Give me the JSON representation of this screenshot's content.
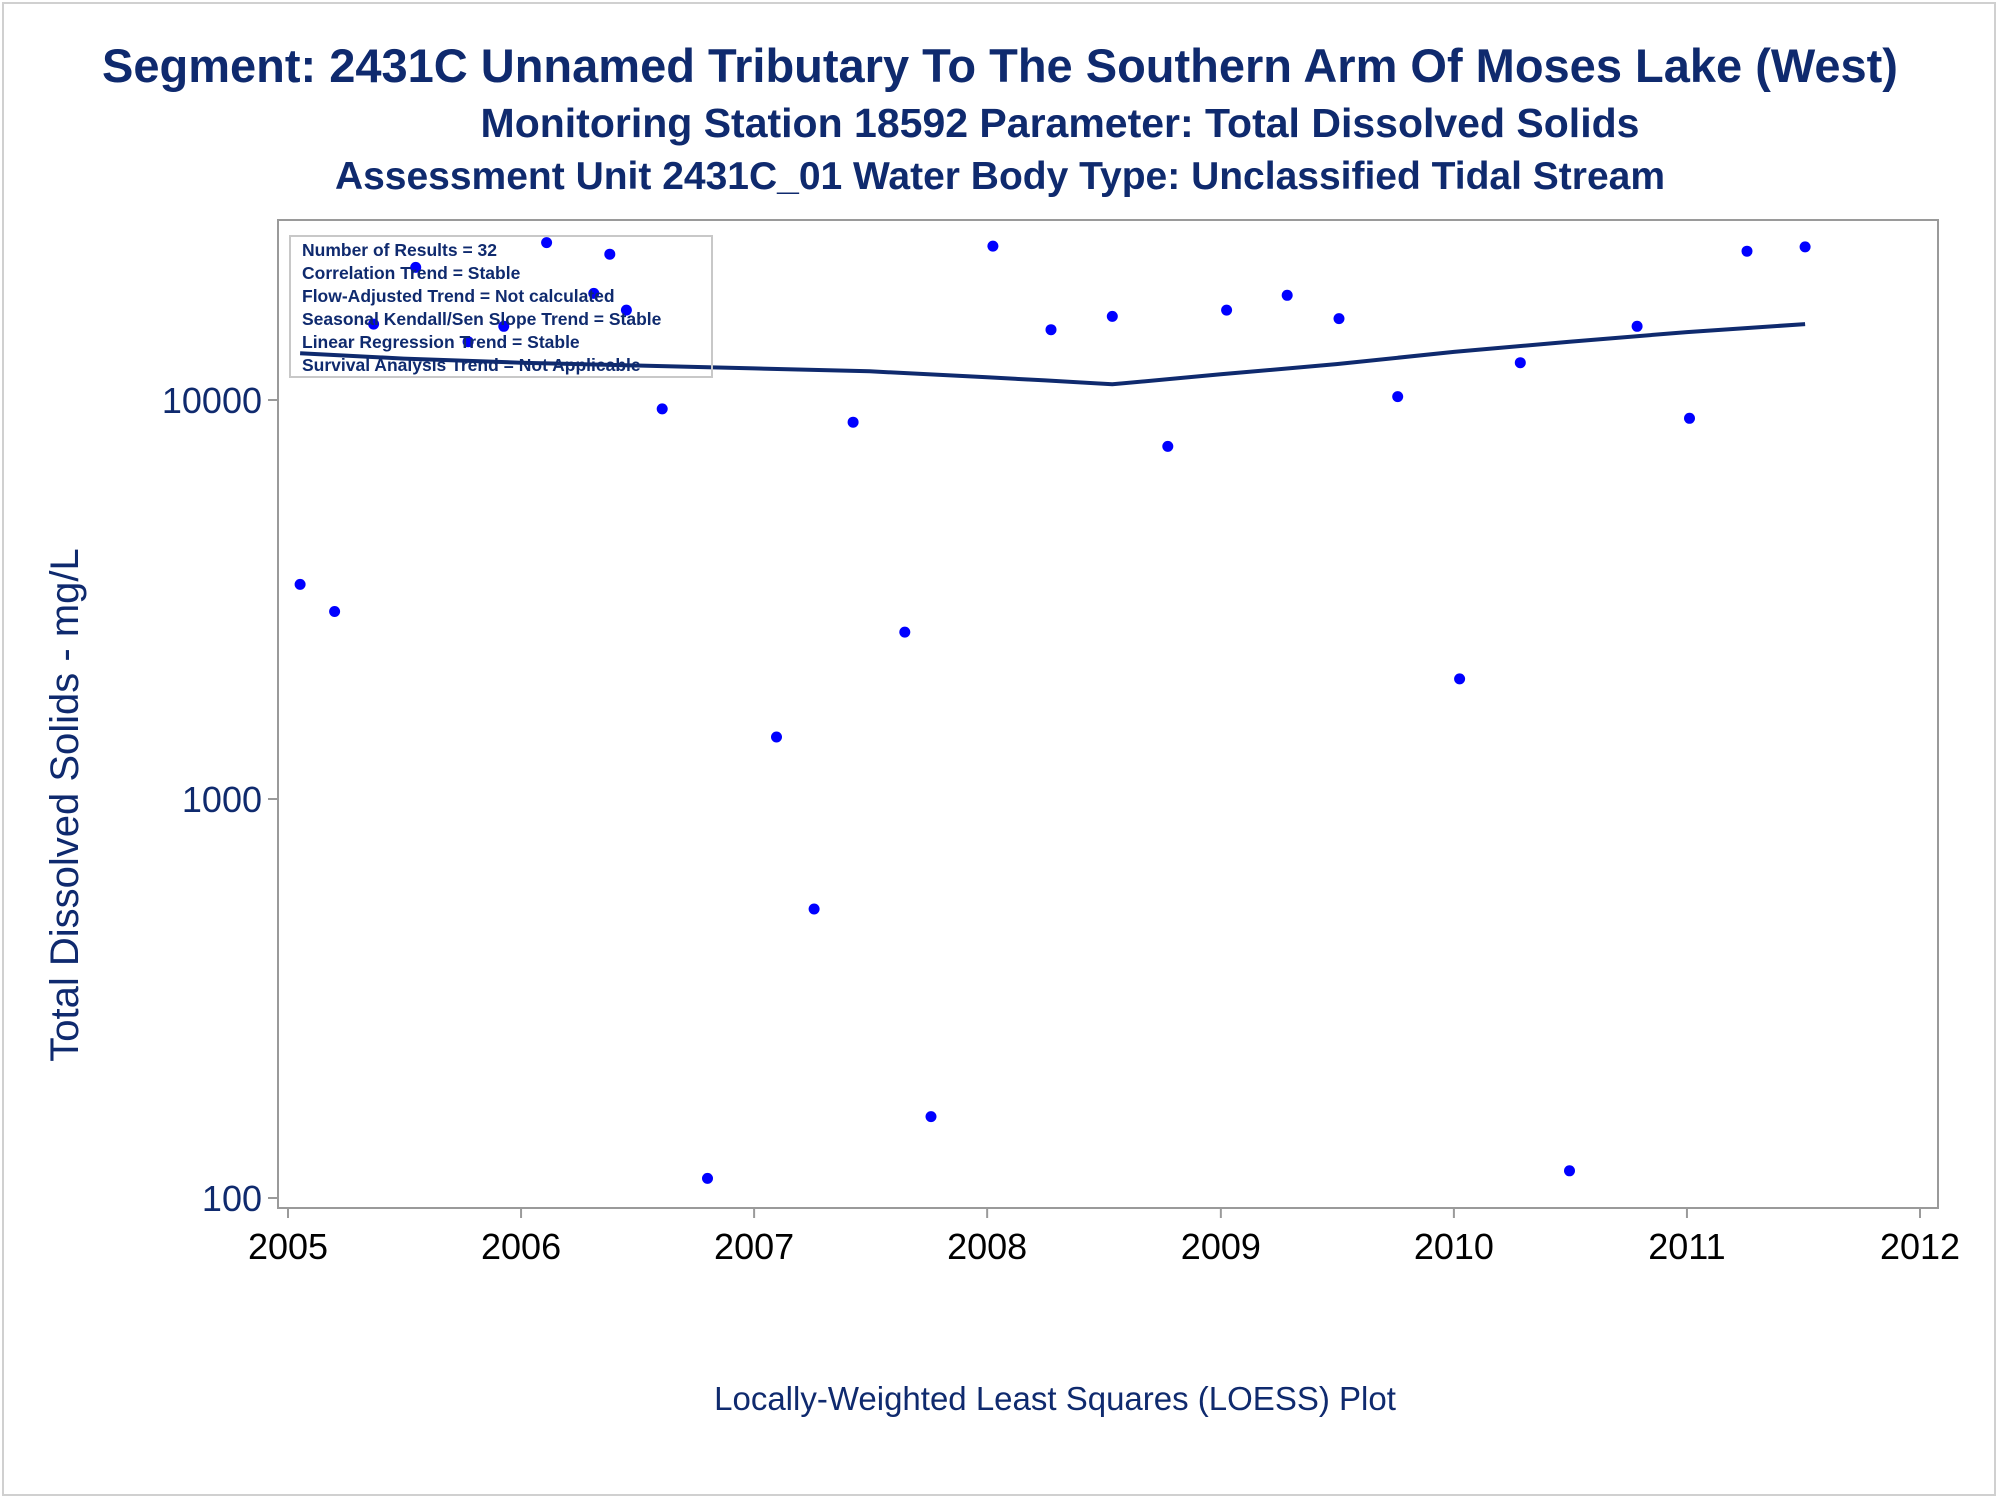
{
  "titles": {
    "line1": "Segment: 2431C  Unnamed Tributary To The Southern Arm Of Moses Lake (West)",
    "line2": "Monitoring Station 18592 Parameter: Total Dissolved Solids",
    "line3": "Assessment Unit 2431C_01   Water Body Type: Unclassified Tidal Stream"
  },
  "footnote": "Locally-Weighted Least Squares (LOESS) Plot",
  "stats": [
    "Number of Results = 32",
    "Correlation Trend = Stable",
    "Flow-Adjusted Trend = Not calculated",
    "Seasonal Kendall/Sen Slope Trend = Stable",
    "Linear Regression Trend = Stable",
    "Survival Analysis Trend = Not Applicable"
  ],
  "colors": {
    "points": "#0000ff",
    "loess": "#0f2a6e",
    "text": "#0f2a6e",
    "axis": "#9a9a9a"
  },
  "chart_data": {
    "type": "scatter",
    "ylabel": "Total Dissolved Solids - mg/L",
    "xlabel": "",
    "x_scale": "date",
    "y_scale": "log",
    "xlim": [
      "2005-01-01",
      "2012-01-01"
    ],
    "ylim": [
      95,
      25000
    ],
    "x_ticks": [
      "2005",
      "2006",
      "2007",
      "2008",
      "2009",
      "2010",
      "2011",
      "2012"
    ],
    "y_ticks": [
      {
        "value": 100,
        "label": "100"
      },
      {
        "value": 1000,
        "label": "1000"
      },
      {
        "value": 10000,
        "label": "10000"
      }
    ],
    "points": [
      {
        "x": "2005-01-20",
        "y": 3450
      },
      {
        "x": "2005-03-15",
        "y": 2950
      },
      {
        "x": "2005-05-15",
        "y": 15500
      },
      {
        "x": "2005-07-20",
        "y": 21500
      },
      {
        "x": "2005-10-10",
        "y": 14000
      },
      {
        "x": "2005-12-05",
        "y": 15300
      },
      {
        "x": "2006-02-10",
        "y": 24800
      },
      {
        "x": "2006-04-25",
        "y": 18500
      },
      {
        "x": "2006-05-20",
        "y": 23200
      },
      {
        "x": "2006-06-15",
        "y": 16800
      },
      {
        "x": "2006-08-10",
        "y": 9500
      },
      {
        "x": "2006-10-20",
        "y": 112
      },
      {
        "x": "2007-02-05",
        "y": 1430
      },
      {
        "x": "2007-04-05",
        "y": 530
      },
      {
        "x": "2007-06-05",
        "y": 8800
      },
      {
        "x": "2007-08-25",
        "y": 2620
      },
      {
        "x": "2007-10-05",
        "y": 160
      },
      {
        "x": "2008-01-10",
        "y": 24300
      },
      {
        "x": "2008-04-10",
        "y": 15000
      },
      {
        "x": "2008-07-15",
        "y": 16200
      },
      {
        "x": "2008-10-10",
        "y": 7650
      },
      {
        "x": "2009-01-10",
        "y": 16800
      },
      {
        "x": "2009-04-15",
        "y": 18300
      },
      {
        "x": "2009-07-05",
        "y": 16000
      },
      {
        "x": "2009-10-05",
        "y": 10200
      },
      {
        "x": "2010-01-10",
        "y": 2000
      },
      {
        "x": "2010-04-15",
        "y": 12400
      },
      {
        "x": "2010-07-01",
        "y": 117
      },
      {
        "x": "2010-10-15",
        "y": 15300
      },
      {
        "x": "2011-01-05",
        "y": 9000
      },
      {
        "x": "2011-04-05",
        "y": 23600
      },
      {
        "x": "2011-07-05",
        "y": 24200
      }
    ],
    "loess_line": [
      {
        "x": "2005-01-20",
        "y": 13100
      },
      {
        "x": "2005-07-01",
        "y": 12700
      },
      {
        "x": "2006-01-01",
        "y": 12400
      },
      {
        "x": "2006-07-01",
        "y": 12200
      },
      {
        "x": "2007-01-01",
        "y": 12000
      },
      {
        "x": "2007-07-01",
        "y": 11800
      },
      {
        "x": "2008-01-01",
        "y": 11400
      },
      {
        "x": "2008-04-01",
        "y": 11200
      },
      {
        "x": "2008-07-15",
        "y": 10950
      },
      {
        "x": "2009-01-01",
        "y": 11600
      },
      {
        "x": "2009-07-01",
        "y": 12300
      },
      {
        "x": "2010-01-01",
        "y": 13200
      },
      {
        "x": "2010-07-01",
        "y": 14000
      },
      {
        "x": "2011-01-01",
        "y": 14800
      },
      {
        "x": "2011-07-05",
        "y": 15500
      }
    ]
  }
}
